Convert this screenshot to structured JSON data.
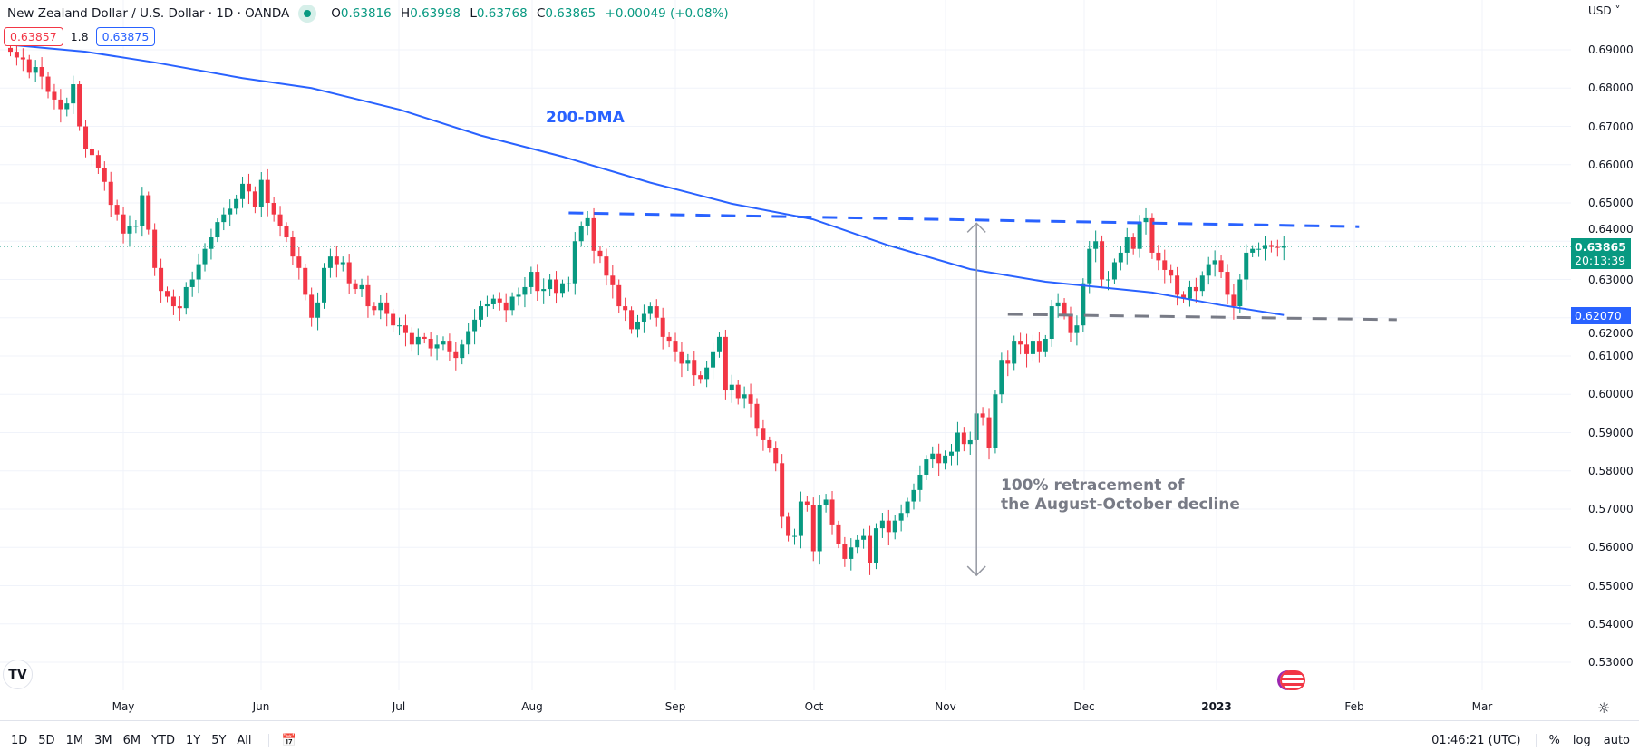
{
  "header": {
    "symbol_title": "New Zealand Dollar / U.S. Dollar · 1D · OANDA",
    "ohlc": {
      "o_label": "O",
      "o": "0.63816",
      "h_label": "H",
      "h": "0.63998",
      "l_label": "L",
      "l": "0.63768",
      "c_label": "C",
      "c": "0.63865",
      "change": "+0.00049 (+0.08%)"
    },
    "sell_price": "0.63857",
    "spread": "1.8",
    "buy_price": "0.63875"
  },
  "price_axis": {
    "currency": "USD",
    "ticks": [
      "0.69000",
      "0.68000",
      "0.67000",
      "0.66000",
      "0.65000",
      "0.64000",
      "0.63000",
      "0.62000",
      "0.61000",
      "0.60000",
      "0.59000",
      "0.58000",
      "0.57000",
      "0.56000",
      "0.55000",
      "0.54000",
      "0.53000"
    ],
    "last_price": "0.63865",
    "countdown": "20:13:39",
    "ma_price": "0.62070"
  },
  "time_axis": {
    "labels": [
      "May",
      "Jun",
      "Jul",
      "Aug",
      "Sep",
      "Oct",
      "Nov",
      "Dec",
      "2023",
      "Feb",
      "Mar"
    ]
  },
  "annotations": {
    "ma_label": "200-DMA",
    "retracement_line1": "100% retracement of",
    "retracement_line2": "the August-October decline"
  },
  "toolbar": {
    "ranges": [
      "1D",
      "5D",
      "1M",
      "3M",
      "6M",
      "YTD",
      "1Y",
      "5Y",
      "All"
    ],
    "clock": "01:46:21 (UTC)",
    "percent": "%",
    "log": "log",
    "auto": "auto"
  },
  "colors": {
    "up": "#089981",
    "down": "#f23645",
    "ma": "#2962ff",
    "support": "#787b86",
    "grid": "#f0f3fa"
  },
  "chart_data": {
    "type": "candlestick",
    "title": "NZD/USD Daily",
    "ylim": [
      0.525,
      0.7
    ],
    "first_open": 0.6905,
    "closes": [
      0.6895,
      0.688,
      0.6875,
      0.684,
      0.6855,
      0.683,
      0.679,
      0.677,
      0.6745,
      0.676,
      0.681,
      0.67,
      0.664,
      0.6625,
      0.659,
      0.6555,
      0.6495,
      0.647,
      0.642,
      0.644,
      0.644,
      0.652,
      0.643,
      0.633,
      0.627,
      0.6255,
      0.623,
      0.6225,
      0.628,
      0.63,
      0.634,
      0.638,
      0.641,
      0.645,
      0.647,
      0.6485,
      0.651,
      0.655,
      0.653,
      0.649,
      0.656,
      0.65,
      0.647,
      0.644,
      0.641,
      0.636,
      0.633,
      0.626,
      0.62,
      0.624,
      0.633,
      0.636,
      0.634,
      0.6345,
      0.629,
      0.6275,
      0.6285,
      0.623,
      0.622,
      0.624,
      0.621,
      0.618,
      0.618,
      0.616,
      0.613,
      0.615,
      0.6145,
      0.612,
      0.613,
      0.614,
      0.611,
      0.6095,
      0.613,
      0.6165,
      0.6195,
      0.623,
      0.6235,
      0.625,
      0.624,
      0.622,
      0.6255,
      0.626,
      0.628,
      0.632,
      0.627,
      0.6275,
      0.63,
      0.6265,
      0.629,
      0.629,
      0.64,
      0.644,
      0.646,
      0.6375,
      0.636,
      0.631,
      0.6285,
      0.623,
      0.622,
      0.617,
      0.619,
      0.621,
      0.623,
      0.62,
      0.615,
      0.614,
      0.611,
      0.608,
      0.609,
      0.605,
      0.604,
      0.607,
      0.611,
      0.615,
      0.601,
      0.6025,
      0.599,
      0.6,
      0.5975,
      0.591,
      0.588,
      0.586,
      0.582,
      0.568,
      0.563,
      0.563,
      0.572,
      0.571,
      0.559,
      0.571,
      0.5725,
      0.566,
      0.561,
      0.557,
      0.56,
      0.562,
      0.563,
      0.556,
      0.565,
      0.567,
      0.564,
      0.567,
      0.569,
      0.572,
      0.575,
      0.579,
      0.583,
      0.5845,
      0.582,
      0.584,
      0.585,
      0.59,
      0.587,
      0.588,
      0.595,
      0.594,
      0.586,
      0.6,
      0.609,
      0.608,
      0.614,
      0.613,
      0.6105,
      0.614,
      0.611,
      0.6145,
      0.623,
      0.624,
      0.621,
      0.616,
      0.618,
      0.629,
      0.638,
      0.64,
      0.63,
      0.63,
      0.6345,
      0.637,
      0.641,
      0.638,
      0.645,
      0.646,
      0.637,
      0.635,
      0.6325,
      0.631,
      0.626,
      0.625,
      0.628,
      0.627,
      0.631,
      0.634,
      0.635,
      0.632,
      0.626,
      0.623,
      0.63,
      0.637,
      0.638,
      0.638,
      0.639,
      0.6385,
      0.6383,
      0.63865
    ],
    "ma200": [
      [
        0,
        0.6913
      ],
      [
        12,
        0.6895
      ],
      [
        23,
        0.6867
      ],
      [
        37,
        0.6826
      ],
      [
        48,
        0.68
      ],
      [
        62,
        0.6744
      ],
      [
        75,
        0.6676
      ],
      [
        88,
        0.6621
      ],
      [
        102,
        0.6553
      ],
      [
        115,
        0.6498
      ],
      [
        128,
        0.6457
      ],
      [
        140,
        0.6389
      ],
      [
        153,
        0.6327
      ],
      [
        165,
        0.6294
      ],
      [
        182,
        0.6266
      ],
      [
        193,
        0.6233
      ],
      [
        203,
        0.6207
      ]
    ],
    "resistance": [
      [
        89,
        0.6474
      ],
      [
        215,
        0.6438
      ]
    ],
    "support": [
      [
        159,
        0.6209
      ],
      [
        221,
        0.6195
      ]
    ],
    "retracement_arrow": [
      [
        154,
        0.6447
      ],
      [
        154,
        0.5527
      ]
    ],
    "last": 0.63865
  }
}
